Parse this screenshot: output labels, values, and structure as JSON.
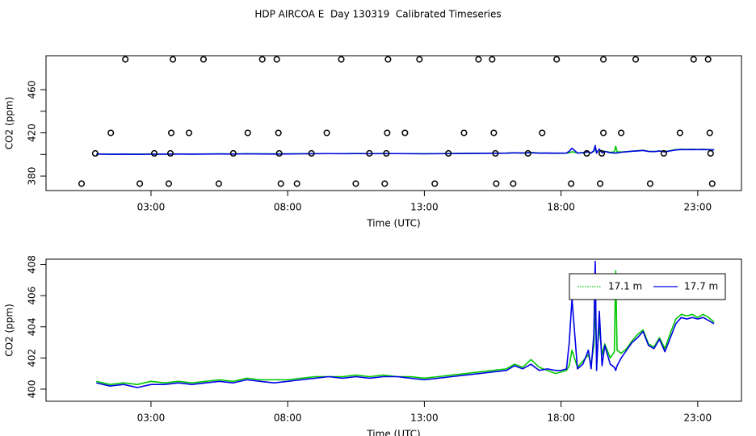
{
  "title": "HDP AIRCOA E  Day 130319  Calibrated Timeseries",
  "chart_data": [
    {
      "type": "scatter",
      "xlabel": "Time (UTC)",
      "ylabel": "CO2 (ppm)",
      "xlim": [
        -0.84,
        24.6
      ],
      "ylim": [
        366.6,
        491.4
      ],
      "xticks": [
        {
          "value": 3,
          "label": "03:00"
        },
        {
          "value": 8,
          "label": "08:00"
        },
        {
          "value": 13,
          "label": "13:00"
        },
        {
          "value": 18,
          "label": "18:00"
        },
        {
          "value": 23,
          "label": "23:00"
        }
      ],
      "yticks": [
        380,
        420,
        460
      ],
      "yminorticks": [
        400,
        440
      ],
      "series": [
        {
          "color": "#000000",
          "x": [
            2.06,
            3.8,
            4.92,
            7.07,
            7.6,
            9.96,
            11.67,
            12.82,
            14.98,
            15.48,
            17.84,
            19.55,
            20.73,
            22.85,
            23.38,
            1.53,
            3.74,
            4.39,
            6.54,
            7.66,
            9.43,
            11.64,
            12.29,
            14.45,
            15.54,
            17.31,
            19.55,
            20.2,
            22.35,
            23.44,
            0.96,
            3.12,
            3.71,
            6.01,
            7.69,
            8.87,
            10.99,
            11.61,
            13.88,
            15.6,
            16.79,
            18.94,
            19.49,
            21.76,
            23.47,
            0.46,
            2.59,
            3.65,
            5.48,
            7.75,
            8.34,
            10.49,
            11.55,
            13.38,
            15.63,
            16.25,
            18.37,
            19.43,
            21.26,
            23.53
          ],
          "values": [
            488,
            488,
            488,
            488,
            488,
            488,
            488,
            488,
            488,
            488,
            488,
            488,
            488,
            488,
            488,
            420,
            420,
            420,
            420,
            420,
            420,
            420,
            420,
            420,
            420,
            420,
            420,
            420,
            420,
            420,
            401,
            401,
            401,
            401,
            401,
            401,
            401,
            401,
            401,
            401,
            401,
            401,
            401,
            401,
            401,
            373,
            373,
            373,
            373,
            373,
            373,
            373,
            373,
            373,
            373,
            373,
            373,
            373,
            373,
            373
          ]
        }
      ]
    },
    {
      "type": "line",
      "xlabel": "Time (UTC)",
      "ylabel": "CO2 (ppm)",
      "xlim": [
        -0.84,
        24.6
      ],
      "ylim": [
        399.22,
        408.34
      ],
      "xticks": [
        {
          "value": 3,
          "label": "03:00"
        },
        {
          "value": 8,
          "label": "08:00"
        },
        {
          "value": 13,
          "label": "13:00"
        },
        {
          "value": 18,
          "label": "18:00"
        },
        {
          "value": 23,
          "label": "23:00"
        }
      ],
      "yticks": [
        400,
        402,
        404,
        406,
        408
      ],
      "legend": "top-right",
      "x": [
        1.0,
        1.5,
        2.0,
        2.5,
        3.0,
        3.5,
        4.0,
        4.5,
        5.0,
        5.5,
        6.0,
        6.5,
        7.0,
        7.5,
        8.0,
        8.5,
        9.0,
        9.5,
        10.0,
        10.5,
        11.0,
        11.5,
        12.0,
        12.5,
        13.0,
        13.5,
        14.0,
        14.5,
        15.0,
        15.5,
        16.0,
        16.3,
        16.6,
        16.9,
        17.2,
        17.5,
        17.8,
        18.0,
        18.2,
        18.3,
        18.4,
        18.6,
        18.8,
        19.0,
        19.1,
        19.2,
        19.25,
        19.3,
        19.4,
        19.5,
        19.6,
        19.8,
        19.95,
        20.0,
        20.05,
        20.2,
        20.4,
        20.6,
        20.8,
        21.0,
        21.2,
        21.4,
        21.6,
        21.8,
        22.0,
        22.2,
        22.4,
        22.6,
        22.8,
        23.0,
        23.2,
        23.4,
        23.6
      ],
      "series": [
        {
          "name": "17.1 m",
          "color": "#00c800",
          "values": [
            400.5,
            400.3,
            400.4,
            400.3,
            400.5,
            400.4,
            400.5,
            400.4,
            400.5,
            400.6,
            400.5,
            400.7,
            400.6,
            400.6,
            400.6,
            400.7,
            400.8,
            400.8,
            400.8,
            400.9,
            400.8,
            400.9,
            400.8,
            400.8,
            400.7,
            400.8,
            400.9,
            401.0,
            401.1,
            401.2,
            401.3,
            401.6,
            401.4,
            401.9,
            401.4,
            401.2,
            401.0,
            401.1,
            401.2,
            401.5,
            402.5,
            401.4,
            401.8,
            402.2,
            401.6,
            402.8,
            405.5,
            402.0,
            404.0,
            402.2,
            402.9,
            402.0,
            402.4,
            407.6,
            402.5,
            402.3,
            402.6,
            403.1,
            403.5,
            403.8,
            402.9,
            402.7,
            403.3,
            402.6,
            403.6,
            404.5,
            404.8,
            404.7,
            404.8,
            404.6,
            404.8,
            404.6,
            404.3
          ]
        },
        {
          "name": "17.7 m",
          "color": "#0000e6",
          "values": [
            400.4,
            400.2,
            400.3,
            400.1,
            400.3,
            400.3,
            400.4,
            400.3,
            400.4,
            400.5,
            400.4,
            400.6,
            400.5,
            400.4,
            400.5,
            400.6,
            400.7,
            400.8,
            400.7,
            400.8,
            400.7,
            400.8,
            400.8,
            400.7,
            400.6,
            400.7,
            400.8,
            400.9,
            401.0,
            401.1,
            401.2,
            401.5,
            401.3,
            401.6,
            401.2,
            401.3,
            401.2,
            401.2,
            401.3,
            403.0,
            405.8,
            401.3,
            401.6,
            402.5,
            401.3,
            403.5,
            408.2,
            401.2,
            405.0,
            401.5,
            402.8,
            401.6,
            401.4,
            401.2,
            401.5,
            402.0,
            402.5,
            403.0,
            403.3,
            403.7,
            402.8,
            402.6,
            403.2,
            402.4,
            403.3,
            404.2,
            404.6,
            404.5,
            404.6,
            404.5,
            404.6,
            404.4,
            404.2
          ]
        }
      ]
    }
  ]
}
